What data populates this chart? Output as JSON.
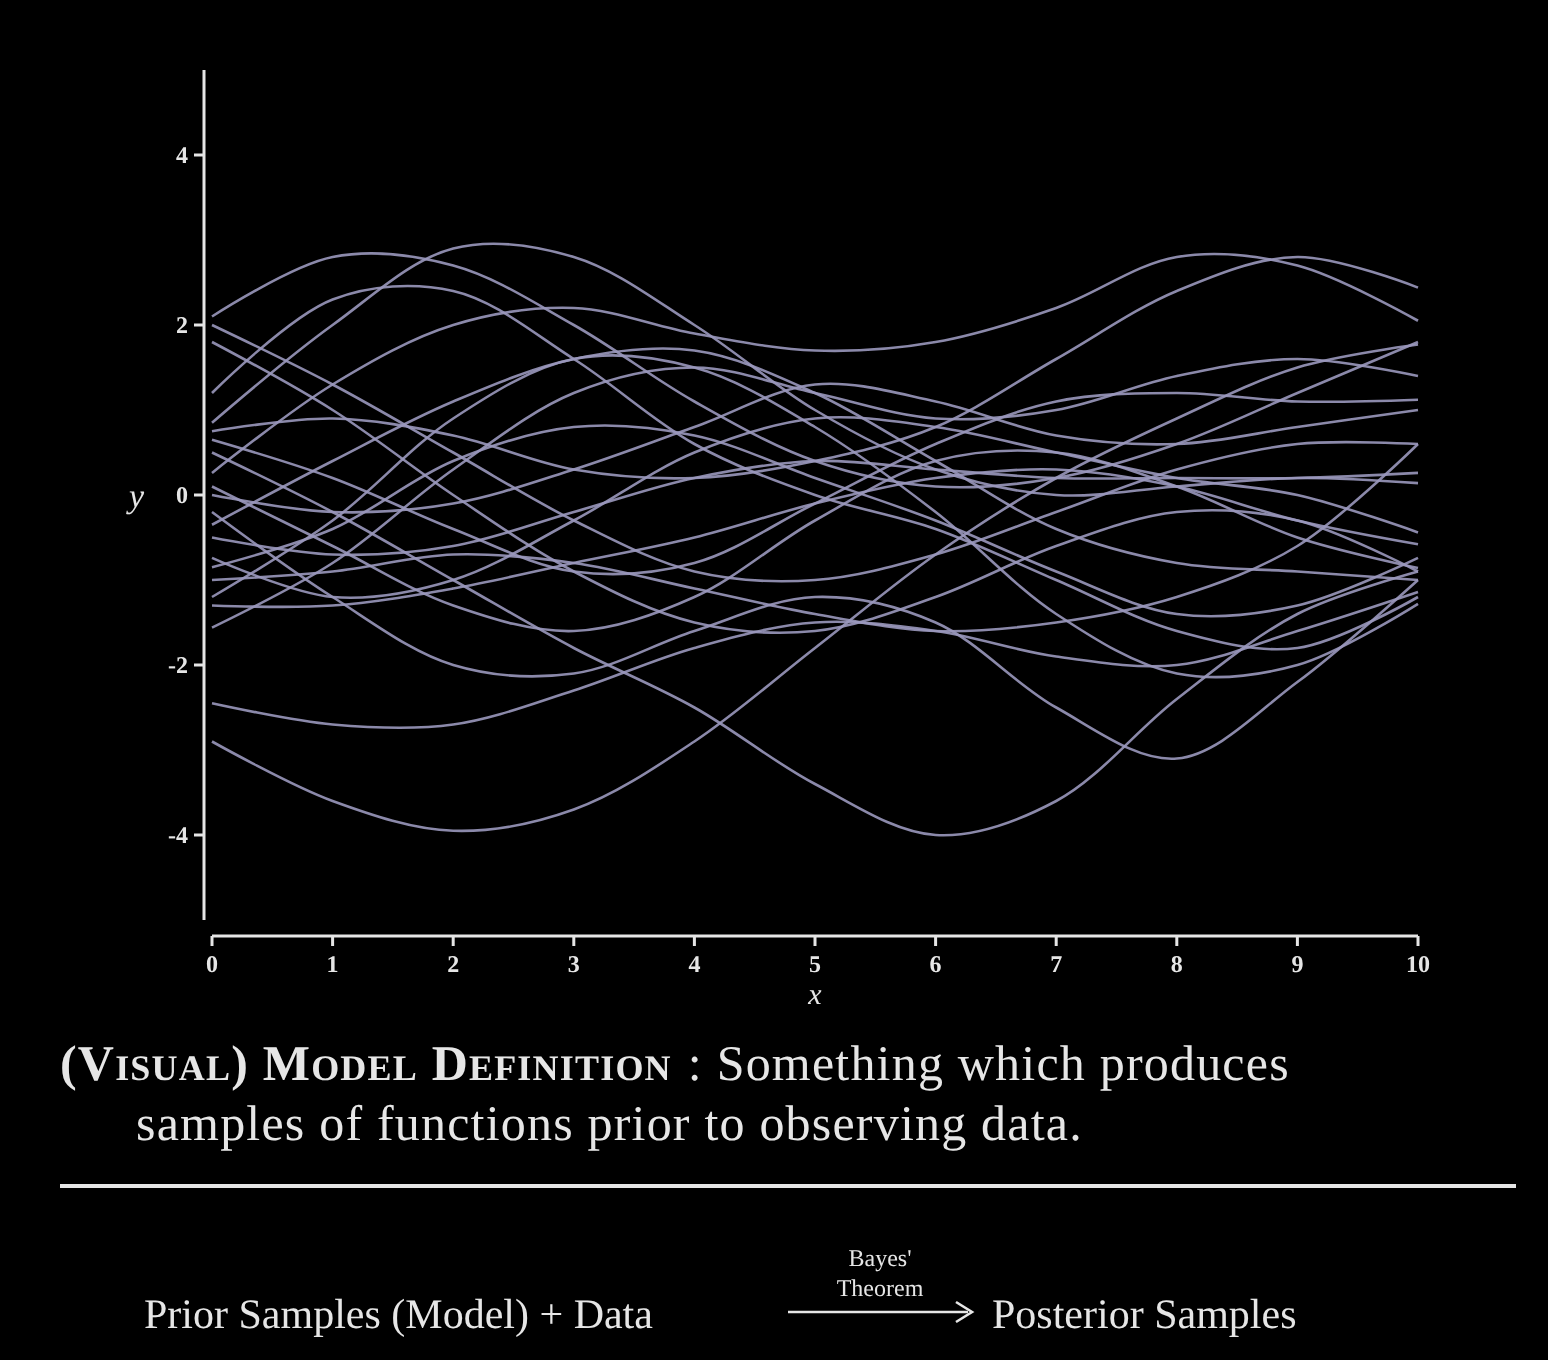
{
  "chart_data": {
    "type": "line",
    "xlabel": "x",
    "ylabel": "y",
    "xlim": [
      0,
      10
    ],
    "ylim": [
      -5,
      5
    ],
    "xticks": [
      0,
      1,
      2,
      3,
      4,
      5,
      6,
      7,
      8,
      9,
      10
    ],
    "yticks": [
      -4,
      -2,
      0,
      2,
      4
    ],
    "grid": false,
    "marker": "none",
    "line_style": "solid",
    "x": [
      0,
      1,
      2,
      3,
      4,
      5,
      6,
      7,
      8,
      9,
      10
    ],
    "series": [
      {
        "color": "#9a98bc",
        "values": [
          2.1,
          2.8,
          2.7,
          2.0,
          1.1,
          0.4,
          0.1,
          0.2,
          0.6,
          1.2,
          1.8
        ]
      },
      {
        "color": "#9a98bc",
        "values": [
          2.0,
          1.3,
          0.5,
          -0.3,
          -0.9,
          -1.0,
          -0.7,
          -0.2,
          0.3,
          0.6,
          0.6
        ]
      },
      {
        "color": "#9a98bc",
        "values": [
          1.8,
          1.0,
          0.0,
          -0.9,
          -1.5,
          -1.6,
          -1.2,
          -0.6,
          -0.2,
          -0.3,
          -0.9
        ]
      },
      {
        "color": "#9a98bc",
        "values": [
          0.85,
          2.0,
          2.9,
          2.8,
          2.0,
          1.0,
          0.3,
          0.0,
          0.1,
          0.2,
          0.14
        ]
      },
      {
        "color": "#9a98bc",
        "values": [
          0.75,
          0.9,
          0.7,
          0.3,
          0.2,
          0.4,
          0.8,
          1.6,
          2.4,
          2.8,
          2.44
        ]
      },
      {
        "color": "#9a98bc",
        "values": [
          0.65,
          0.2,
          -0.4,
          -0.9,
          -0.8,
          -0.1,
          0.6,
          1.1,
          1.2,
          1.1,
          1.12
        ]
      },
      {
        "color": "#9a98bc",
        "values": [
          0.26,
          1.3,
          2.0,
          2.2,
          1.9,
          1.7,
          1.8,
          2.2,
          2.8,
          2.7,
          2.05
        ]
      },
      {
        "color": "#9a98bc",
        "values": [
          0.1,
          -0.6,
          -1.3,
          -1.6,
          -1.2,
          -0.3,
          0.4,
          0.5,
          0.1,
          -0.5,
          -0.86
        ]
      },
      {
        "color": "#9a98bc",
        "values": [
          -0.35,
          0.4,
          1.1,
          1.6,
          1.7,
          1.2,
          0.4,
          -0.4,
          -0.8,
          -0.9,
          -1.0
        ]
      },
      {
        "color": "#9a98bc",
        "values": [
          -0.5,
          -0.7,
          -0.6,
          -0.2,
          0.2,
          0.4,
          0.3,
          0.2,
          0.2,
          0.2,
          0.26
        ]
      },
      {
        "color": "#9a98bc",
        "values": [
          -0.74,
          -1.2,
          -1.0,
          -0.3,
          0.5,
          0.9,
          0.8,
          0.5,
          0.2,
          0.0,
          -0.44
        ]
      },
      {
        "color": "#9a98bc",
        "values": [
          -0.85,
          -0.4,
          0.4,
          0.8,
          0.7,
          0.2,
          -0.3,
          -0.9,
          -1.4,
          -1.3,
          -0.74
        ]
      },
      {
        "color": "#9a98bc",
        "values": [
          -1.0,
          -0.9,
          -0.7,
          -0.8,
          -1.1,
          -1.4,
          -1.6,
          -1.5,
          -1.2,
          -0.6,
          0.6
        ]
      },
      {
        "color": "#9a98bc",
        "values": [
          -1.2,
          -0.3,
          0.9,
          1.6,
          1.5,
          0.8,
          -0.2,
          -1.4,
          -2.1,
          -2.0,
          -1.28
        ]
      },
      {
        "color": "#9a98bc",
        "values": [
          -1.3,
          -1.3,
          -1.1,
          -0.8,
          -0.5,
          -0.1,
          0.2,
          0.3,
          0.1,
          -0.3,
          -0.58
        ]
      },
      {
        "color": "#9a98bc",
        "values": [
          -1.56,
          -0.8,
          0.3,
          1.2,
          1.5,
          1.2,
          0.9,
          1.0,
          1.4,
          1.6,
          1.4
        ]
      },
      {
        "color": "#9a98bc",
        "values": [
          -2.45,
          -2.7,
          -2.7,
          -2.3,
          -1.8,
          -1.5,
          -1.6,
          -1.9,
          -2.0,
          -1.6,
          -1.14
        ]
      },
      {
        "color": "#9a98bc",
        "values": [
          -2.9,
          -3.6,
          -3.95,
          -3.7,
          -2.9,
          -1.8,
          -0.7,
          0.2,
          0.9,
          1.5,
          1.77
        ]
      },
      {
        "color": "#9a98bc",
        "values": [
          0.5,
          -0.2,
          -1.0,
          -1.8,
          -2.5,
          -3.4,
          -4.0,
          -3.6,
          -2.4,
          -1.4,
          -0.9
        ]
      },
      {
        "color": "#9a98bc",
        "values": [
          -0.2,
          -1.2,
          -2.0,
          -2.1,
          -1.6,
          -1.2,
          -1.5,
          -2.5,
          -3.1,
          -2.2,
          -1.0
        ]
      },
      {
        "color": "#9a98bc",
        "values": [
          1.2,
          2.3,
          2.4,
          1.6,
          0.6,
          0.0,
          -0.4,
          -1.0,
          -1.6,
          -1.8,
          -1.2
        ]
      },
      {
        "color": "#9a98bc",
        "values": [
          0.0,
          -0.2,
          -0.1,
          0.3,
          0.8,
          1.3,
          1.1,
          0.7,
          0.6,
          0.8,
          1.0
        ]
      }
    ],
    "annotations": [
      "(Visual) Model Definition",
      ": Something which produces",
      "samples of functions prior to observing data.",
      "Prior Samples (Model) + Data",
      "Bayes'",
      "Theorem",
      "Posterior Samples"
    ]
  }
}
